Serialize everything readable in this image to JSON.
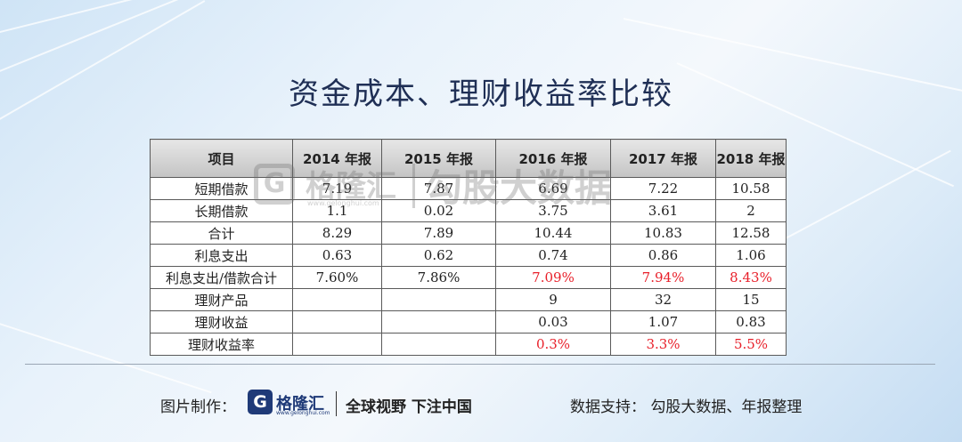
{
  "title": "资金成本、理财收益率比较",
  "table": {
    "headers": [
      "项目",
      "2014 年报",
      "2015 年报",
      "2016 年报",
      "2017 年报",
      "2018 年报"
    ],
    "rows": [
      {
        "label": "短期借款",
        "values": [
          "7.19",
          "7.87",
          "6.69",
          "7.22",
          "10.58"
        ]
      },
      {
        "label": "长期借款",
        "values": [
          "1.1",
          "0.02",
          "3.75",
          "3.61",
          "2"
        ]
      },
      {
        "label": "合计",
        "values": [
          "8.29",
          "7.89",
          "10.44",
          "10.83",
          "12.58"
        ]
      },
      {
        "label": "利息支出",
        "values": [
          "0.63",
          "0.62",
          "0.74",
          "0.86",
          "1.06"
        ]
      },
      {
        "label": "利息支出/借款合计",
        "values": [
          "7.60%",
          "7.86%",
          "7.09%",
          "7.94%",
          "8.43%"
        ]
      },
      {
        "label": "理财产品",
        "values": [
          "",
          "",
          "9",
          "32",
          "15"
        ]
      },
      {
        "label": "理财收益",
        "values": [
          "",
          "",
          "0.03",
          "1.07",
          "0.83"
        ]
      },
      {
        "label": "理财收益率",
        "values": [
          "",
          "",
          "0.3%",
          "3.3%",
          "5.5%"
        ]
      }
    ],
    "highlight_color": "#e8202a"
  },
  "watermark": {
    "logo_letter": "G",
    "brand": "格隆汇",
    "url": "www.gelonghui.com",
    "data_source": "勾股大数据"
  },
  "footer": {
    "made_by_label": "图片制作：",
    "logo_letter": "G",
    "brand": "格隆汇",
    "url": "www.gelonghui.com",
    "slogan": "全球视野 下注中国",
    "support": "数据支持：  勾股大数据、年报整理"
  }
}
